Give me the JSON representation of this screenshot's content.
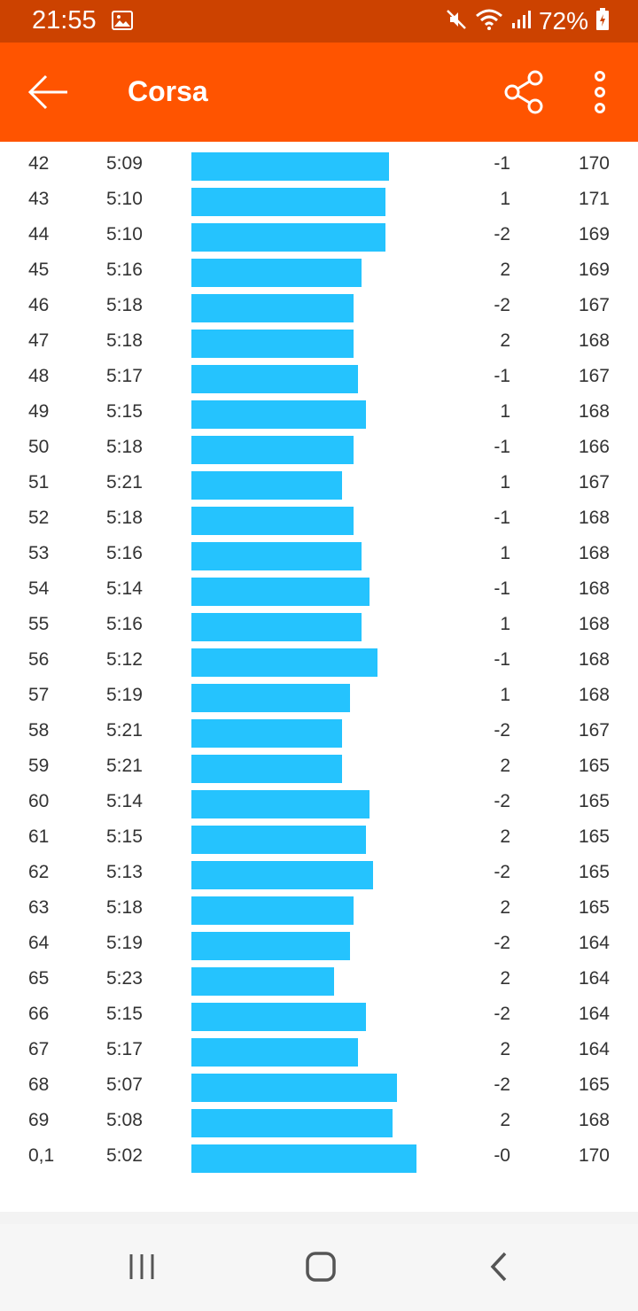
{
  "status_bar": {
    "time": "21:55",
    "battery_percent": "72%",
    "icons": [
      "image-icon",
      "mute-icon",
      "wifi-icon",
      "signal-icon",
      "battery-icon"
    ]
  },
  "app_bar": {
    "title": "Corsa",
    "back_icon": "arrow-left-icon",
    "share_icon": "share-icon",
    "more_icon": "more-vertical-icon"
  },
  "colors": {
    "status_bar_bg": "#cc4200",
    "app_bar_bg": "#ff5400",
    "bar_color": "#25c3fe"
  },
  "splits": [
    {
      "km": "42",
      "pace": "5:09",
      "elev": "-1",
      "hr": "170"
    },
    {
      "km": "43",
      "pace": "5:10",
      "elev": "1",
      "hr": "171"
    },
    {
      "km": "44",
      "pace": "5:10",
      "elev": "-2",
      "hr": "169"
    },
    {
      "km": "45",
      "pace": "5:16",
      "elev": "2",
      "hr": "169"
    },
    {
      "km": "46",
      "pace": "5:18",
      "elev": "-2",
      "hr": "167"
    },
    {
      "km": "47",
      "pace": "5:18",
      "elev": "2",
      "hr": "168"
    },
    {
      "km": "48",
      "pace": "5:17",
      "elev": "-1",
      "hr": "167"
    },
    {
      "km": "49",
      "pace": "5:15",
      "elev": "1",
      "hr": "168"
    },
    {
      "km": "50",
      "pace": "5:18",
      "elev": "-1",
      "hr": "166"
    },
    {
      "km": "51",
      "pace": "5:21",
      "elev": "1",
      "hr": "167"
    },
    {
      "km": "52",
      "pace": "5:18",
      "elev": "-1",
      "hr": "168"
    },
    {
      "km": "53",
      "pace": "5:16",
      "elev": "1",
      "hr": "168"
    },
    {
      "km": "54",
      "pace": "5:14",
      "elev": "-1",
      "hr": "168"
    },
    {
      "km": "55",
      "pace": "5:16",
      "elev": "1",
      "hr": "168"
    },
    {
      "km": "56",
      "pace": "5:12",
      "elev": "-1",
      "hr": "168"
    },
    {
      "km": "57",
      "pace": "5:19",
      "elev": "1",
      "hr": "168"
    },
    {
      "km": "58",
      "pace": "5:21",
      "elev": "-2",
      "hr": "167"
    },
    {
      "km": "59",
      "pace": "5:21",
      "elev": "2",
      "hr": "165"
    },
    {
      "km": "60",
      "pace": "5:14",
      "elev": "-2",
      "hr": "165"
    },
    {
      "km": "61",
      "pace": "5:15",
      "elev": "2",
      "hr": "165"
    },
    {
      "km": "62",
      "pace": "5:13",
      "elev": "-2",
      "hr": "165"
    },
    {
      "km": "63",
      "pace": "5:18",
      "elev": "2",
      "hr": "165"
    },
    {
      "km": "64",
      "pace": "5:19",
      "elev": "-2",
      "hr": "164"
    },
    {
      "km": "65",
      "pace": "5:23",
      "elev": "2",
      "hr": "164"
    },
    {
      "km": "66",
      "pace": "5:15",
      "elev": "-2",
      "hr": "164"
    },
    {
      "km": "67",
      "pace": "5:17",
      "elev": "2",
      "hr": "164"
    },
    {
      "km": "68",
      "pace": "5:07",
      "elev": "-2",
      "hr": "165"
    },
    {
      "km": "69",
      "pace": "5:08",
      "elev": "2",
      "hr": "168"
    },
    {
      "km": "0,1",
      "pace": "5:02",
      "elev": "-0",
      "hr": "170"
    }
  ],
  "nav_bar": {
    "icons": [
      "recent-apps-icon",
      "home-icon",
      "back-icon"
    ]
  }
}
